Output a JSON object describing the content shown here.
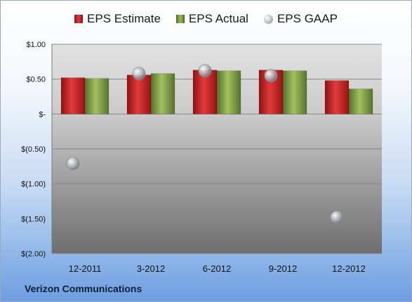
{
  "chart_data": {
    "type": "bar",
    "categories": [
      "12-2011",
      "3-2012",
      "6-2012",
      "9-2012",
      "12-2012"
    ],
    "series": [
      {
        "name": "EPS Estimate",
        "type": "bar",
        "color": "#c0272d",
        "values": [
          0.52,
          0.56,
          0.63,
          0.63,
          0.48
        ]
      },
      {
        "name": "EPS Actual",
        "type": "bar",
        "color": "#8aab4a",
        "values": [
          0.51,
          0.58,
          0.62,
          0.62,
          0.36
        ]
      },
      {
        "name": "EPS GAAP",
        "type": "scatter",
        "color": "#b7bcc4",
        "values": [
          -0.71,
          0.58,
          0.62,
          0.55,
          -1.48
        ]
      }
    ],
    "ylim": [
      -2.0,
      1.0
    ],
    "yticks": [
      1.0,
      0.5,
      0.0,
      -0.5,
      -1.0,
      -1.5,
      -2.0
    ],
    "ytick_labels": [
      "$1.00",
      "$0.50",
      "$-",
      "$(0.50)",
      "$(1.00)",
      "$(1.50)",
      "$(2.00)"
    ],
    "grid": true,
    "legend_position": "top",
    "legend": [
      "EPS Estimate",
      "EPS Actual",
      "EPS GAAP"
    ]
  },
  "footer": {
    "company": "Verizon Communications"
  }
}
